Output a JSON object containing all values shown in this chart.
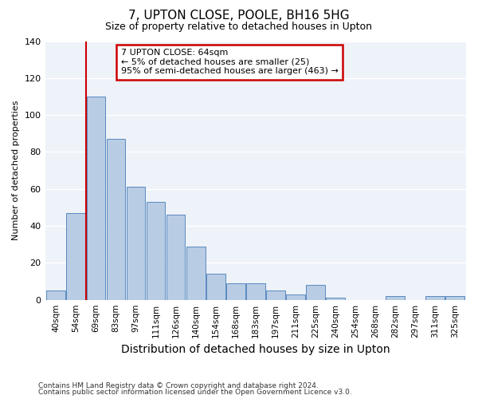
{
  "title": "7, UPTON CLOSE, POOLE, BH16 5HG",
  "subtitle": "Size of property relative to detached houses in Upton",
  "xlabel": "Distribution of detached houses by size in Upton",
  "ylabel": "Number of detached properties",
  "bin_labels": [
    "40sqm",
    "54sqm",
    "69sqm",
    "83sqm",
    "97sqm",
    "111sqm",
    "126sqm",
    "140sqm",
    "154sqm",
    "168sqm",
    "183sqm",
    "197sqm",
    "211sqm",
    "225sqm",
    "240sqm",
    "254sqm",
    "268sqm",
    "282sqm",
    "297sqm",
    "311sqm",
    "325sqm"
  ],
  "bin_values": [
    5,
    47,
    110,
    87,
    61,
    53,
    46,
    29,
    14,
    9,
    9,
    5,
    3,
    8,
    1,
    0,
    0,
    2,
    0,
    2,
    2
  ],
  "bar_color": "#b8cce4",
  "bar_edge_color": "#5a8abf",
  "vline_index": 2,
  "vline_color": "#cc0000",
  "ylim": [
    0,
    140
  ],
  "yticks": [
    0,
    20,
    40,
    60,
    80,
    100,
    120,
    140
  ],
  "annotation_title": "7 UPTON CLOSE: 64sqm",
  "annotation_line1": "← 5% of detached houses are smaller (25)",
  "annotation_line2": "95% of semi-detached houses are larger (463) →",
  "annotation_box_color": "#cc0000",
  "footer_line1": "Contains HM Land Registry data © Crown copyright and database right 2024.",
  "footer_line2": "Contains public sector information licensed under the Open Government Licence v3.0.",
  "background_color": "#eef2f9",
  "title_fontsize": 11,
  "subtitle_fontsize": 9,
  "xlabel_fontsize": 10,
  "ylabel_fontsize": 8
}
